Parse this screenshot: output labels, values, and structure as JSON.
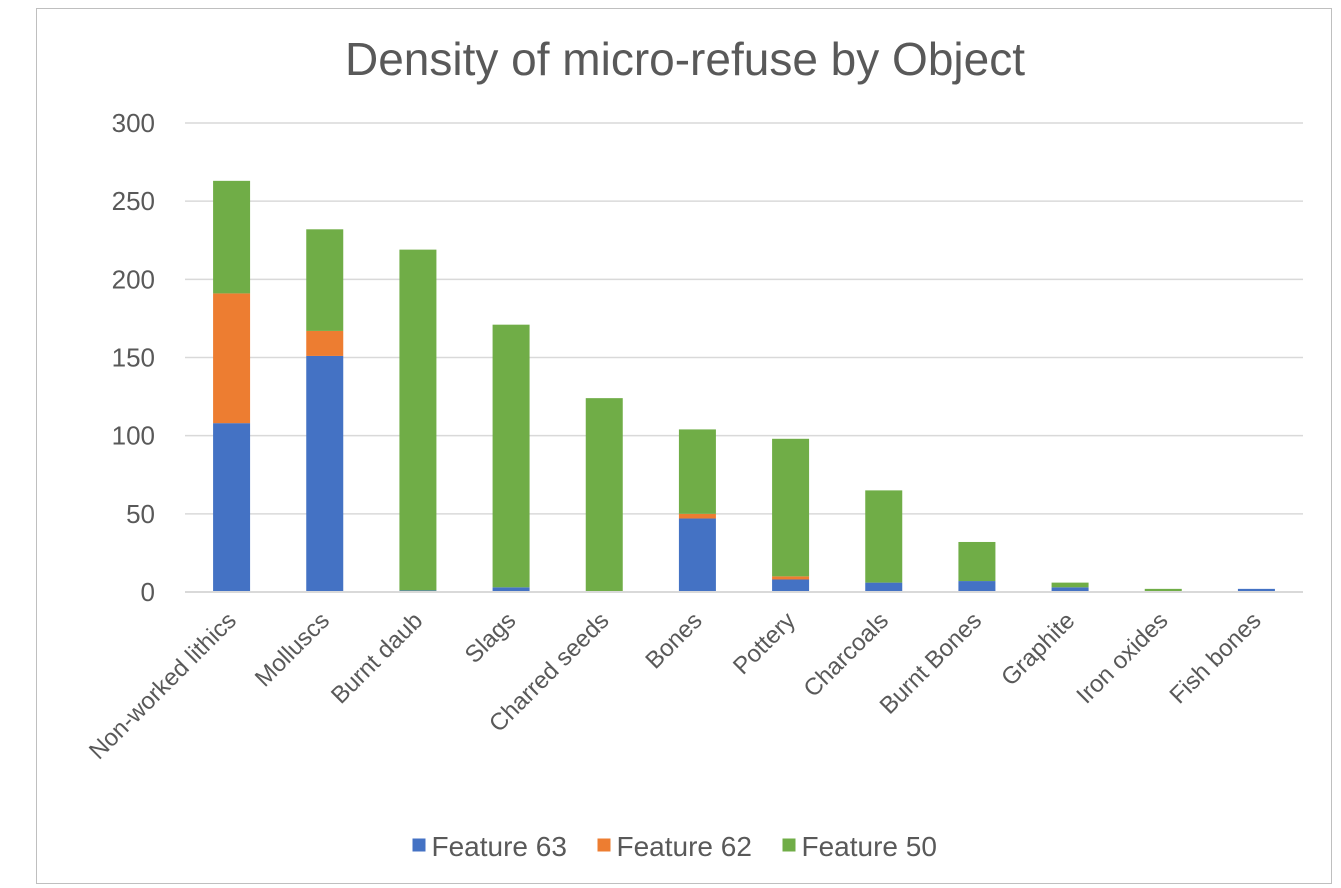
{
  "chart_data": {
    "type": "bar",
    "stacked": true,
    "title": "Density of micro-refuse by Object",
    "xlabel": "",
    "ylabel": "",
    "ylim": [
      0,
      300
    ],
    "yticks": [
      0,
      50,
      100,
      150,
      200,
      250,
      300
    ],
    "grid": true,
    "legend_position": "bottom",
    "categories": [
      "Non-worked lithics",
      "Molluscs",
      "Burnt daub",
      "Slags",
      "Charred seeds",
      "Bones",
      "Pottery",
      "Charcoals",
      "Burnt Bones",
      "Graphite",
      "Iron oxides",
      "Fish bones"
    ],
    "series": [
      {
        "name": "Feature 63",
        "color": "#4472c4",
        "values": [
          108,
          151,
          1,
          3,
          0,
          47,
          8,
          6,
          7,
          3,
          0,
          2
        ]
      },
      {
        "name": "Feature 62",
        "color": "#ed7d31",
        "values": [
          83,
          16,
          0,
          0,
          0,
          3,
          2,
          0,
          0,
          0,
          0,
          0
        ]
      },
      {
        "name": "Feature 50",
        "color": "#70ad47",
        "values": [
          72,
          65,
          218,
          168,
          124,
          54,
          88,
          59,
          25,
          3,
          2,
          0
        ]
      }
    ]
  }
}
